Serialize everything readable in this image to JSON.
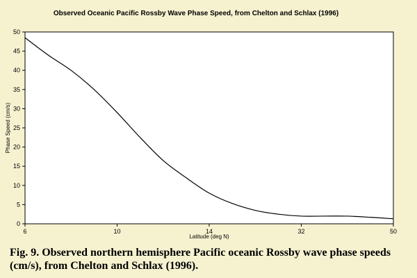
{
  "caption": "Fig. 9.  Observed northern hemisphere Pacific oceanic Rossby wave phase speeds (cm/s), from Chelton and Schlax (1996).",
  "chart_data": {
    "type": "line",
    "title": "Observed Oceanic Pacific Rossby Wave Phase Speed, from Chelton and Schlax (1996)",
    "xlabel": "Latitude (deg N)",
    "ylabel": "Phase Speed (cm/s)",
    "x_tick_labels": [
      "6",
      "10",
      "14",
      "32",
      "50"
    ],
    "ylim": [
      0,
      50
    ],
    "y_ticks": [
      0,
      5,
      10,
      15,
      20,
      25,
      30,
      35,
      40,
      45,
      50
    ],
    "grid": false,
    "legend": "none",
    "series": [
      {
        "x": [
          0,
          0.5,
          1,
          1.5,
          2,
          2.5,
          3,
          3.5,
          4,
          4.5,
          5,
          5.5,
          6,
          6.5,
          7,
          7.5,
          8
        ],
        "values": [
          48.5,
          44,
          40,
          35,
          29,
          22.5,
          16.5,
          12,
          8,
          5.3,
          3.5,
          2.5,
          2,
          2,
          2,
          1.7,
          1.3
        ]
      }
    ],
    "line_color": "#000000",
    "plot_background": "#ffffff",
    "page_background": "#f6f2d0"
  }
}
